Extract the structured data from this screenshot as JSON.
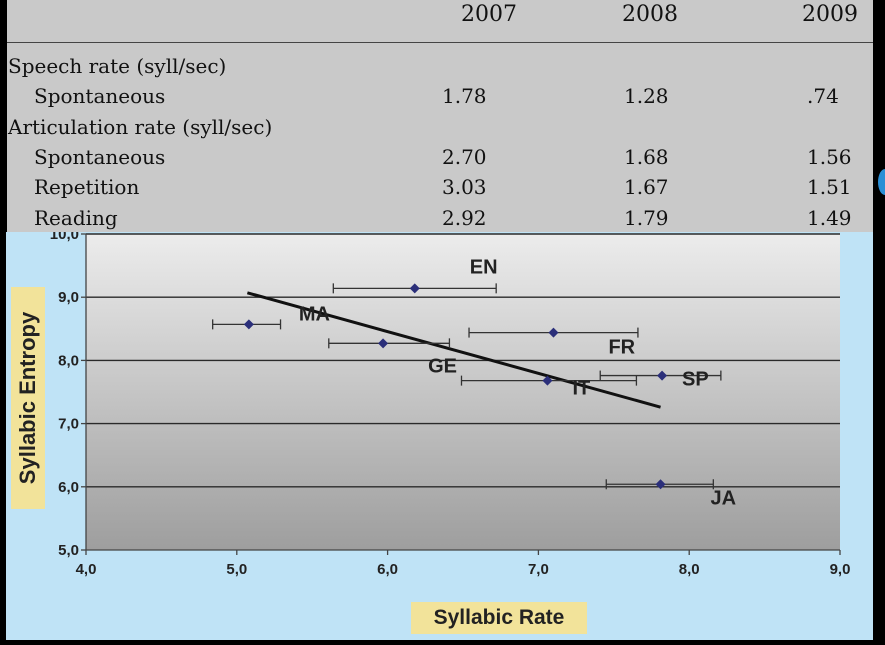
{
  "table": {
    "columns": [
      "2007",
      "2008",
      "2009"
    ],
    "rows": [
      {
        "label": "Speech rate (syll/sec)",
        "values": [
          "",
          "",
          ""
        ]
      },
      {
        "label": "Spontaneous",
        "values": [
          "1.78",
          "1.28",
          ".74"
        ]
      },
      {
        "label": "Articulation rate (syll/sec)",
        "values": [
          "",
          "",
          ""
        ]
      },
      {
        "label": "Spontaneous",
        "values": [
          "2.70",
          "1.68",
          "1.56"
        ]
      },
      {
        "label": "Repetition",
        "values": [
          "3.03",
          "1.67",
          "1.51"
        ]
      },
      {
        "label": "Reading",
        "values": [
          "2.92",
          "1.79",
          "1.49"
        ]
      }
    ]
  },
  "chart_data": {
    "type": "scatter",
    "xlabel": "Syllabic Rate",
    "ylabel": "Syllabic Entropy",
    "xlim": [
      4.0,
      9.0
    ],
    "ylim": [
      5.0,
      10.0
    ],
    "xticks": [
      "4,0",
      "5,0",
      "6,0",
      "7,0",
      "8,0",
      "9,0"
    ],
    "yticks": [
      "5,0",
      "6,0",
      "7,0",
      "8,0",
      "9,0",
      "10,0"
    ],
    "grid": true,
    "points": [
      {
        "label": "EN",
        "x": 6.18,
        "y": 9.14,
        "xerr": [
          5.64,
          6.72
        ]
      },
      {
        "label": "MA",
        "x": 5.08,
        "y": 8.57,
        "xerr": [
          4.84,
          5.29
        ]
      },
      {
        "label": "GE",
        "x": 5.97,
        "y": 8.27,
        "xerr": [
          5.61,
          6.41
        ]
      },
      {
        "label": "FR",
        "x": 7.1,
        "y": 8.44,
        "xerr": [
          6.54,
          7.66
        ]
      },
      {
        "label": "IT",
        "x": 7.06,
        "y": 7.68,
        "xerr": [
          6.49,
          7.65
        ]
      },
      {
        "label": "SP",
        "x": 7.82,
        "y": 7.76,
        "xerr": [
          7.41,
          8.21
        ]
      },
      {
        "label": "JA",
        "x": 7.81,
        "y": 6.04,
        "xerr": [
          7.45,
          8.16
        ]
      }
    ],
    "trendline": {
      "x": [
        5.07,
        7.81
      ],
      "y": [
        9.07,
        7.26
      ]
    },
    "colors": {
      "point": "#2b2f7a",
      "trend": "#111111",
      "background": "#bfe3f6"
    }
  }
}
